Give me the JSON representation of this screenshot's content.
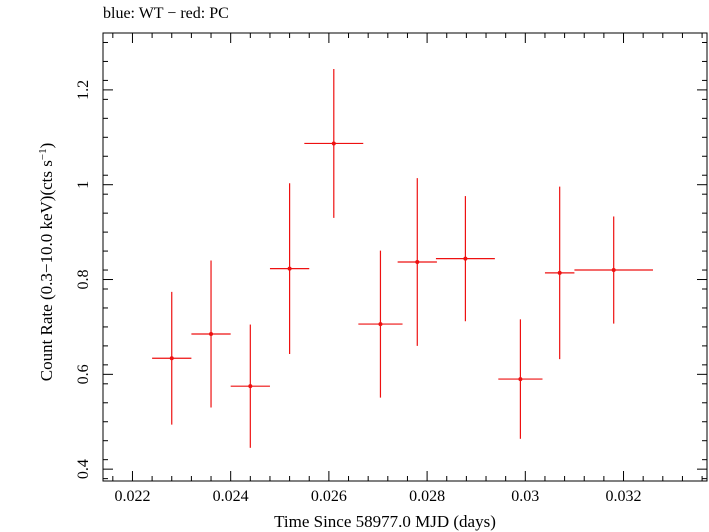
{
  "chart_data": {
    "type": "scatter",
    "title": "blue: WT − red: PC",
    "xlabel": "Time Since 58977.0 MJD (days)",
    "ylabel_main": "Count Rate (0.3−10.0 keV)(cts s",
    "ylabel_sup": "−1",
    "ylabel_close": ")",
    "xlim": [
      0.0214,
      0.0337
    ],
    "ylim": [
      0.375,
      1.32
    ],
    "x_ticks": [
      0.022,
      0.024,
      0.026,
      0.028,
      0.03,
      0.032
    ],
    "x_tick_labels": [
      "0.022",
      "0.024",
      "0.026",
      "0.028",
      "0.03",
      "0.032"
    ],
    "y_ticks": [
      0.4,
      0.6,
      0.8,
      1.0,
      1.2
    ],
    "y_tick_labels": [
      "0.4",
      "0.6",
      "0.8",
      "1",
      "1.2"
    ],
    "series": [
      {
        "name": "PC",
        "color": "#ee1111",
        "points": [
          {
            "x": 0.0228,
            "xerr": 0.0004,
            "y": 0.634,
            "yerr": 0.14
          },
          {
            "x": 0.0236,
            "xerr": 0.0004,
            "y": 0.685,
            "yerr": 0.155
          },
          {
            "x": 0.0244,
            "xerr": 0.0004,
            "y": 0.575,
            "yerr": 0.13
          },
          {
            "x": 0.0252,
            "xerr": 0.0004,
            "y": 0.823,
            "yerr": 0.18
          },
          {
            "x": 0.0261,
            "xerr": 0.0006,
            "y": 1.087,
            "yerr": 0.157
          },
          {
            "x": 0.02705,
            "xerr": 0.00045,
            "y": 0.706,
            "yerr": 0.155
          },
          {
            "x": 0.0278,
            "xerr": 0.0004,
            "y": 0.837,
            "yerr": 0.177
          },
          {
            "x": 0.02878,
            "xerr": 0.0006,
            "y": 0.844,
            "yerr": 0.132
          },
          {
            "x": 0.0299,
            "xerr": 0.00045,
            "y": 0.59,
            "yerr": 0.126
          },
          {
            "x": 0.0307,
            "xerr": 0.0003,
            "y": 0.814,
            "yerr": 0.182
          },
          {
            "x": 0.0318,
            "xerr": 0.0008,
            "y": 0.82,
            "yerr": 0.113
          }
        ]
      }
    ]
  }
}
